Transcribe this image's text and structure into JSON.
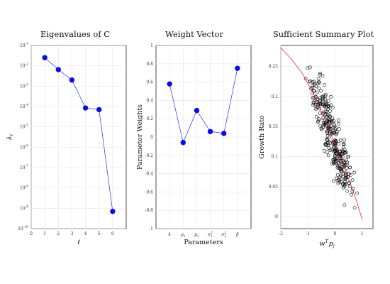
{
  "chart_data": [
    {
      "type": "line",
      "title": "Eigenvalues of C",
      "xlabel": "ℓ",
      "ylabel": "λℓ",
      "yscale": "log",
      "xlim": [
        0,
        7
      ],
      "ylim_exp": [
        -10,
        -1
      ],
      "xticks": [
        "0",
        "1",
        "2",
        "3",
        "4",
        "5",
        "6"
      ],
      "yticks": [
        {
          "base": "10",
          "exp": "-10"
        },
        {
          "base": "10",
          "exp": "-9"
        },
        {
          "base": "10",
          "exp": "-8"
        },
        {
          "base": "10",
          "exp": "-7"
        },
        {
          "base": "10",
          "exp": "-6"
        },
        {
          "base": "10",
          "exp": "-5"
        },
        {
          "base": "10",
          "exp": "-4"
        },
        {
          "base": "10",
          "exp": "-3"
        },
        {
          "base": "10",
          "exp": "-2"
        },
        {
          "base": "10",
          "exp": "-1"
        }
      ],
      "series": [
        {
          "x": [
            1,
            2,
            3,
            4,
            5,
            6
          ],
          "y": [
            0.025,
            0.0065,
            0.002,
            8.5e-05,
            7e-05,
            7e-10
          ]
        }
      ],
      "colors": {
        "line": "#2a2af0",
        "marker": "#0b0bea"
      }
    },
    {
      "type": "line",
      "title": "Weight Vector",
      "xlabel": "Parameters",
      "ylabel": "Parameter Weights",
      "ylim": [
        -1,
        1
      ],
      "categories": [
        "k",
        "μ1",
        "μ2",
        "σ12",
        "σ22",
        "β"
      ],
      "yticks": [
        "-1",
        "-0.8",
        "-0.6",
        "-0.4",
        "-0.2",
        "0",
        "0.2",
        "0.4",
        "0.6",
        "0.8",
        "1"
      ],
      "series": [
        {
          "values": [
            0.58,
            -0.06,
            0.29,
            0.06,
            0.04,
            0.75
          ]
        }
      ],
      "colors": {
        "line": "#2a2af0",
        "marker": "#0b0bea"
      }
    },
    {
      "type": "scatter",
      "title": "Sufficient Summary Plot",
      "xlabel": "wTpj",
      "ylabel": "Growth Rate",
      "xlim": [
        -2,
        1.4
      ],
      "ylim": [
        -0.02,
        0.285
      ],
      "xticks": [
        "-2",
        "-1",
        "0",
        "1"
      ],
      "yticks": [
        "0",
        "0.05",
        "0.1",
        "0.15",
        "0.2",
        "0.25"
      ],
      "fit_line": {
        "x": [
          -2.0,
          -1.6,
          -1.2,
          -0.8,
          -0.4,
          0.0,
          0.4,
          0.8,
          1.0
        ],
        "y": [
          0.281,
          0.262,
          0.238,
          0.205,
          0.165,
          0.12,
          0.075,
          0.025,
          -0.005
        ]
      },
      "scatter_trend": {
        "slope": -0.1125,
        "intercept": 0.12,
        "x_range": [
          -1.5,
          1.05
        ],
        "n": 320,
        "noise": 0.03
      },
      "colors": {
        "points": "#000000",
        "fit": "#e8141c"
      }
    }
  ]
}
